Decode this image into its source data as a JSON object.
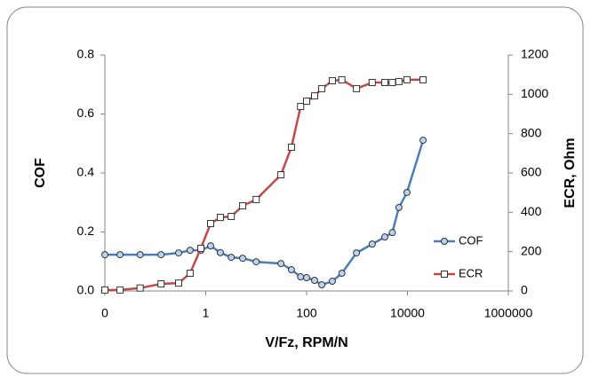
{
  "chart_data": {
    "type": "line",
    "xlabel": "V/Fz, RPM/N",
    "ylabel": "COF",
    "y2label": "ECR, Ohm",
    "xscale": "log",
    "xlim": [
      0.01,
      1000000
    ],
    "xticks": [
      {
        "value": 0.01,
        "label": "0"
      },
      1,
      100,
      10000,
      1000000
    ],
    "ylim": [
      0,
      0.8
    ],
    "yticks": [
      {
        "value": 0,
        "label": "0.0"
      },
      0.2,
      0.4,
      0.6,
      0.8
    ],
    "y2lim": [
      0,
      1200
    ],
    "y2ticks": [
      0,
      200,
      400,
      600,
      800,
      1000,
      1200
    ],
    "grid": false,
    "legend": "right",
    "x": [
      0.01,
      0.02,
      0.05,
      0.13,
      0.29,
      0.49,
      0.8,
      1.25,
      1.95,
      3.2,
      5.4,
      10,
      31,
      50,
      76,
      100,
      144,
      200,
      324,
      500,
      975,
      2000,
      3550,
      5000,
      6760,
      9770,
      20400
    ],
    "series": [
      {
        "name": "COF",
        "color": "#4a7ebb",
        "marker": "circle",
        "values": [
          0.123,
          0.123,
          0.123,
          0.123,
          0.129,
          0.138,
          0.138,
          0.153,
          0.13,
          0.114,
          0.111,
          0.099,
          0.093,
          0.072,
          0.048,
          0.045,
          0.036,
          0.021,
          0.033,
          0.06,
          0.129,
          0.159,
          0.183,
          0.198,
          0.283,
          0.334,
          0.511
        ]
      },
      {
        "name": "ECR",
        "color": "#be4b48",
        "marker": "square",
        "axis": "y2",
        "values": [
          5,
          5,
          15,
          36,
          40,
          90,
          217,
          343,
          374,
          379,
          433,
          465,
          591,
          731,
          938,
          965,
          992,
          1029,
          1069,
          1074,
          1029,
          1060,
          1060,
          1060,
          1065,
          1074,
          1074
        ]
      }
    ]
  }
}
